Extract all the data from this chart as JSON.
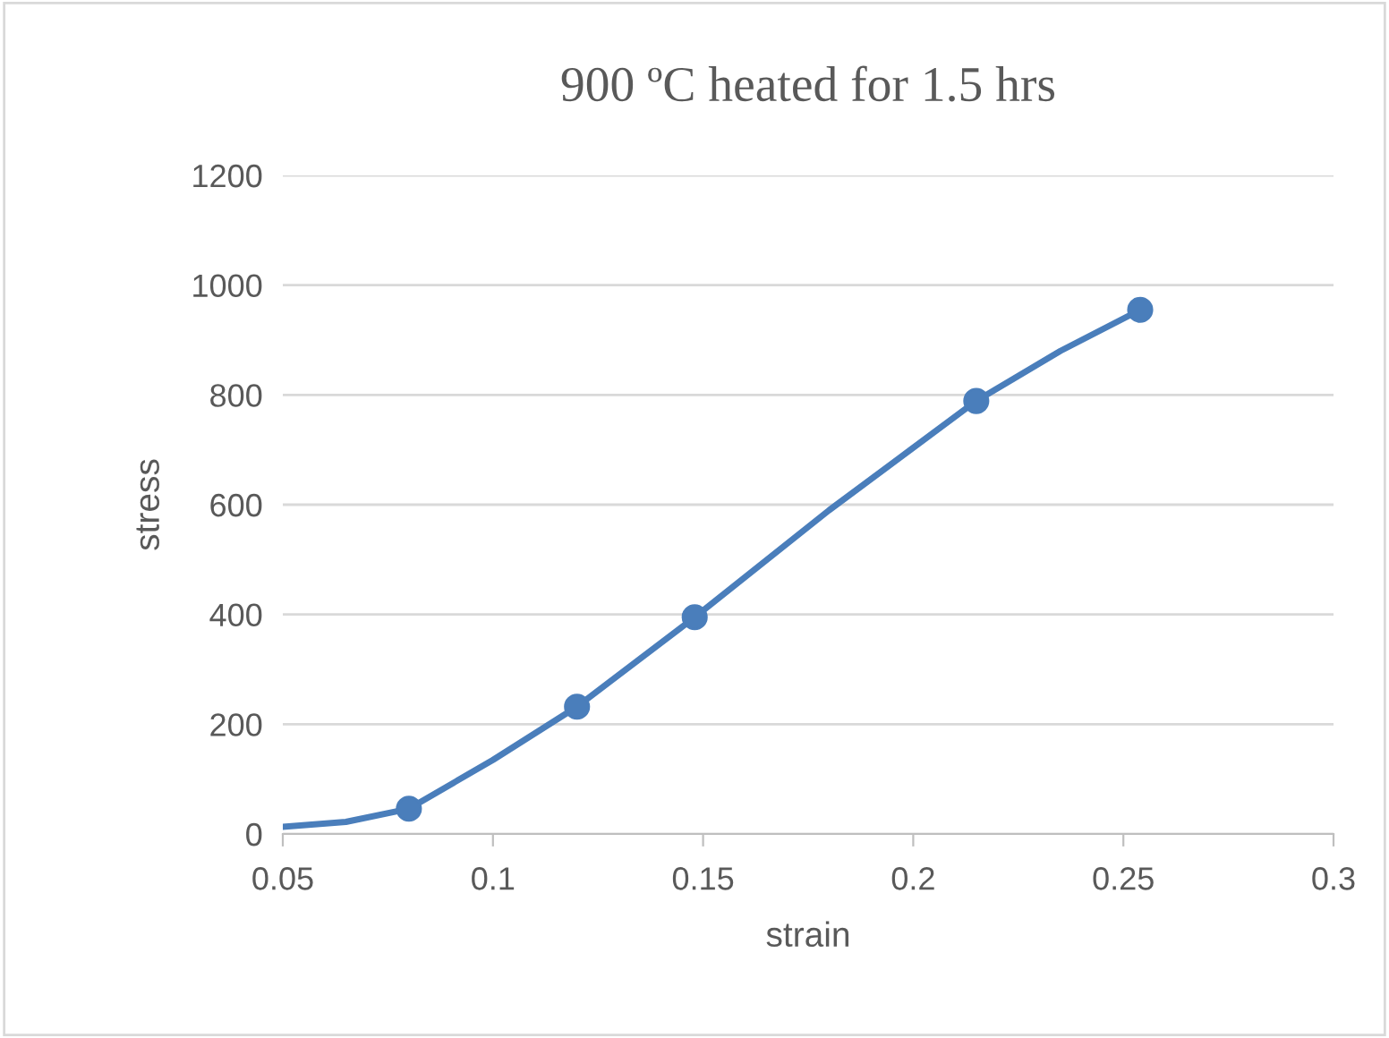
{
  "chart_data": {
    "type": "line",
    "title": "900 ºC heated for 1.5 hrs",
    "xlabel": "strain",
    "ylabel": "stress",
    "series": [
      {
        "color": "#4a7ebb",
        "marker": "none",
        "x": [
          0.05,
          0.065,
          0.08,
          0.1,
          0.12,
          0.148,
          0.18,
          0.215,
          0.235,
          0.254
        ],
        "values": [
          13,
          22,
          46,
          135,
          232,
          395,
          590,
          789,
          880,
          955
        ]
      },
      {
        "type": "scatter",
        "color": "#4a7ebb",
        "marker": "circle",
        "x": [
          0.08,
          0.12,
          0.148,
          0.215,
          0.254
        ],
        "values": [
          46,
          232,
          395,
          789,
          955
        ]
      }
    ],
    "xlim": [
      0.05,
      0.3
    ],
    "xticks": [
      0.05,
      0.1,
      0.15,
      0.2,
      0.25,
      0.3
    ],
    "ylim": [
      0,
      1200
    ],
    "yticks": [
      0,
      200,
      400,
      600,
      800,
      1000,
      1200
    ],
    "grid": "y",
    "legend": false
  }
}
